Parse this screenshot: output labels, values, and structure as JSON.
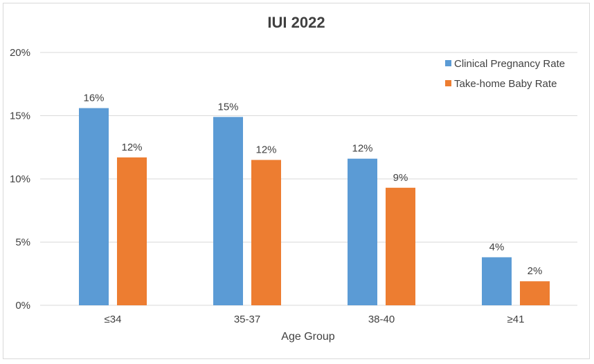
{
  "chart_data": {
    "type": "bar",
    "title": "IUI 2022",
    "xlabel": "Age Group",
    "ylabel": "",
    "categories": [
      "≤34",
      "35-37",
      "38-40",
      "≥41"
    ],
    "ylim": [
      0,
      20
    ],
    "yticks": [
      0,
      5,
      10,
      15,
      20
    ],
    "ytick_labels": [
      "0%",
      "5%",
      "10%",
      "15%",
      "20%"
    ],
    "grid": true,
    "legend_position": "top-right",
    "series": [
      {
        "name": "Clinical Pregnancy Rate",
        "color": "#5b9bd5",
        "values": [
          15.6,
          14.9,
          11.6,
          3.8
        ],
        "labels": [
          "16%",
          "15%",
          "12%",
          "4%"
        ]
      },
      {
        "name": "Take-home Baby Rate",
        "color": "#ed7d31",
        "values": [
          11.7,
          11.5,
          9.3,
          1.9
        ],
        "labels": [
          "12%",
          "12%",
          "9%",
          "2%"
        ]
      }
    ]
  }
}
